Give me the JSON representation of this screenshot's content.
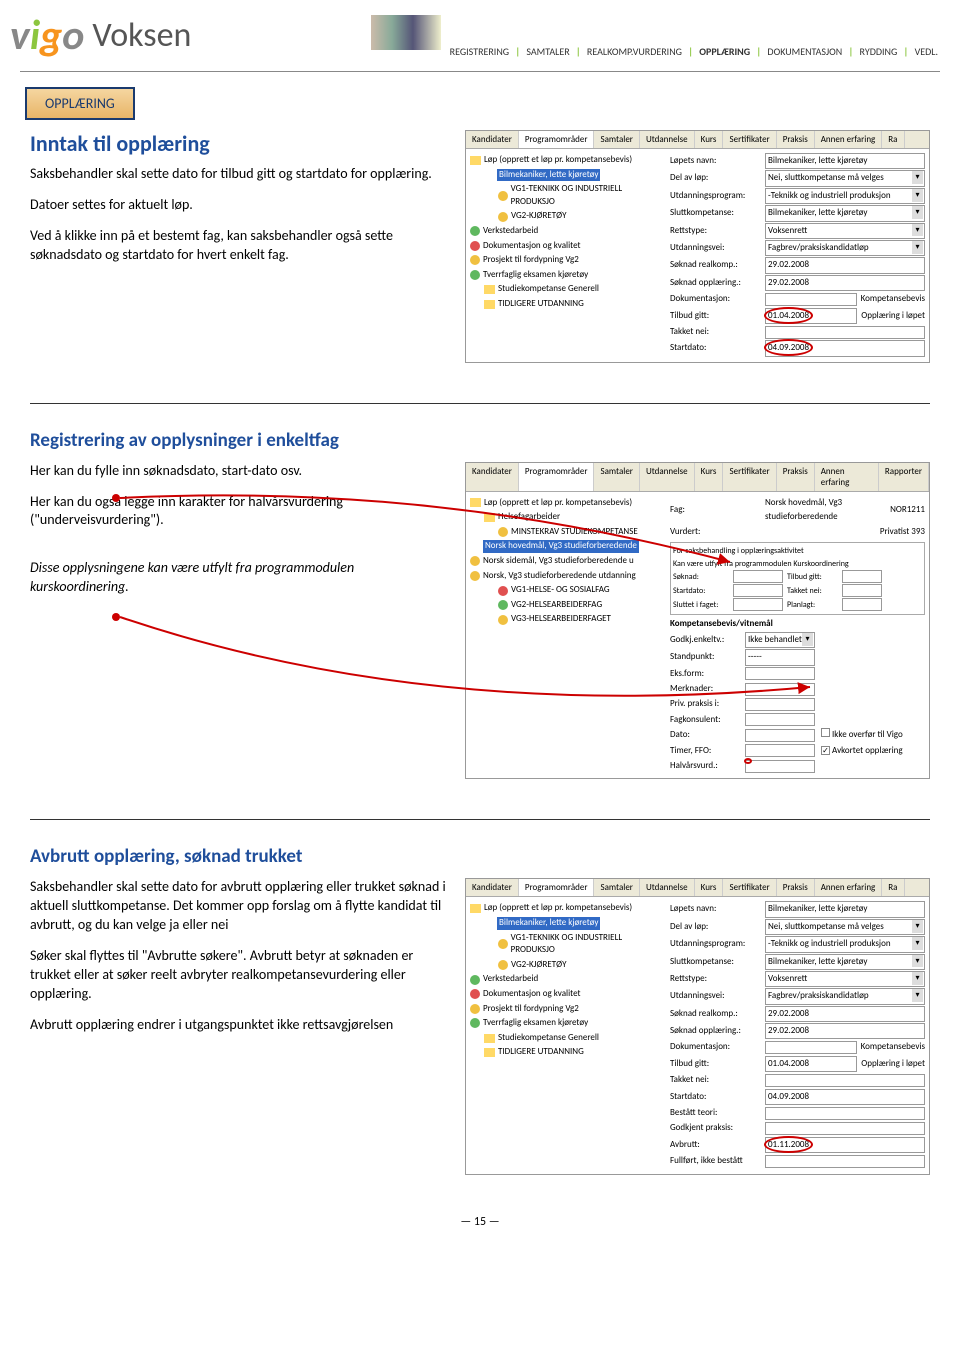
{
  "logo": {
    "v": "v",
    "i": "i",
    "g": "g",
    "o": "o",
    "voksen": "Voksen"
  },
  "breadcrumb": [
    "REGISTRERING",
    "SAMTALER",
    "REALKOMP.VURDERING",
    "OPPLÆRING",
    "DOKUMENTASJON",
    "RYDDING",
    "VEDL."
  ],
  "breadcrumb_active": "OPPLÆRING",
  "badge": "OPPLÆRING",
  "nav_sep": "|",
  "page_num": "— 15 —",
  "s1": {
    "title": "Inntak til opplæring",
    "p1": "Saksbehandler skal sette dato for tilbud gitt og startdato for opplæring.",
    "p2": "Datoer settes for aktuelt løp.",
    "p3": "Ved å klikke inn på et bestemt fag, kan saksbehandler også sette søknadsdato og startdato for hvert enkelt fag.",
    "tabs": [
      "Kandidater",
      "Programområder",
      "Samtaler",
      "Utdannelse",
      "Kurs",
      "Sertifikater",
      "Praksis",
      "Annen erfaring",
      "Ra"
    ],
    "active_tab": "Programområder",
    "tree_root": "Løp (opprett et løp pr. kompetansebevis)",
    "tree": [
      {
        "label": "Bilmekaniker, lette kjøretøy",
        "sel": true
      },
      {
        "label": "VG1-TEKNIKK OG INDUSTRIELL PRODUKSJO",
        "ico": "yellow",
        "ind": 1
      },
      {
        "label": "VG2-KJØRETØY",
        "ico": "yellow",
        "ind": 1
      },
      {
        "label": "Verkstedarbeid",
        "ico": "green",
        "ind": 2
      },
      {
        "label": "Dokumentasjon og kvalitet",
        "ico": "red",
        "ind": 2
      },
      {
        "label": "Prosjekt til fordypning Vg2",
        "ico": "yellow",
        "ind": 2
      },
      {
        "label": "Tverrfaglig eksamen kjøretøy",
        "ico": "green",
        "ind": 2
      },
      {
        "label": "Studiekompetanse Generell",
        "ico": "folder",
        "ind": 0
      },
      {
        "label": "TIDLIGERE UTDANNING",
        "ico": "folder",
        "ind": 0
      }
    ],
    "form": [
      {
        "l": "Løpets navn:",
        "v": "Bilmekaniker, lette kjøretøy"
      },
      {
        "l": "Del av løp:",
        "v": "Nei, sluttkompetanse må velges",
        "dd": true
      },
      {
        "l": "Utdanningsprogram:",
        "v": "-Teknikk og industriell produksjon",
        "dd": true
      },
      {
        "l": "Sluttkompetanse:",
        "v": "Bilmekaniker, lette kjøretøy",
        "dd": true
      },
      {
        "l": "Rettstype:",
        "v": "Voksenrett",
        "dd": true
      },
      {
        "l": "Utdanningsvei:",
        "v": "Fagbrev/praksiskandidatløp",
        "dd": true
      },
      {
        "l": "Søknad realkomp.:",
        "v": "29.02.2008"
      },
      {
        "l": "Søknad opplæring.:",
        "v": "29.02.2008"
      },
      {
        "l": "Dokumentasjon:",
        "v": "",
        "extra": "Kompetansebevis"
      },
      {
        "l": "Tilbud gitt:",
        "v": "01.04.2008",
        "extra": "Opplæring i løpet",
        "circle": true
      },
      {
        "l": "Takket nei:",
        "v": ""
      },
      {
        "l": "Startdato:",
        "v": "04.09.2008",
        "circle": true
      }
    ]
  },
  "s2": {
    "title": "Registrering av opplysninger i enkeltfag",
    "p1": "Her kan du fylle inn søknadsdato, start-dato osv.",
    "p2": "Her kan du også legge inn karakter for halvårsvurdering (\"underveisvurdering\").",
    "p3": "Disse opplysningene kan være utfylt fra programmodulen kurskoordinering.",
    "tabs": [
      "Kandidater",
      "Programområder",
      "Samtaler",
      "Utdannelse",
      "Kurs",
      "Sertifikater",
      "Praksis",
      "Annen erfaring",
      "Rapporter"
    ],
    "active_tab": "Programområder",
    "tree_root": "Løp (opprett et løp pr. kompetansebevis)",
    "tree": [
      {
        "label": "Helsefagarbeider",
        "ico": "folder",
        "ind": 0
      },
      {
        "label": "MINSTEKRAV STUDIEKOMPETANSE",
        "ico": "yellow",
        "ind": 1
      },
      {
        "label": "Norsk hovedmål, Vg3 studieforberedende",
        "sel": true,
        "ind": 2
      },
      {
        "label": "Norsk sidemål, Vg3 studieforberedende u",
        "ico": "yellow",
        "ind": 2
      },
      {
        "label": "Norsk, Vg3 studieforberedende utdanning",
        "ico": "yellow",
        "ind": 2
      },
      {
        "label": "VG1-HELSE- OG SOSIALFAG",
        "ico": "red",
        "ind": 1
      },
      {
        "label": "VG2-HELSEARBEIDERFAG",
        "ico": "green",
        "ind": 1
      },
      {
        "label": "VG3-HELSEARBEIDERFAGET",
        "ico": "yellow",
        "ind": 1
      }
    ],
    "form_top": [
      {
        "l": "Fag:",
        "v": "Norsk hovedmål, Vg3 studieforberedende",
        "extra": "NOR1211"
      },
      {
        "l": "Vurdert:",
        "v": "",
        "extra": "Privatist  393"
      }
    ],
    "form_box_title": "For saksbehandling i opplæringsaktivitet",
    "form_box_sub": "Kan være utfylt fra programmodulen Kurskoordinering",
    "form_mid": [
      {
        "l": "Søknad:",
        "v": "",
        "l2": "Tilbud gitt:",
        "v2": ""
      },
      {
        "l": "Startdato:",
        "v": "",
        "l2": "Takket nei:",
        "v2": ""
      },
      {
        "l": "Sluttet i faget:",
        "v": "",
        "l2": "Planlagt:",
        "v2": ""
      }
    ],
    "form_section": "Kompetansebevis/vitnemål",
    "form_bottom": [
      {
        "l": "Godkj.enkeltv.:",
        "v": "Ikke behandlet",
        "dd": true
      },
      {
        "l": "Standpunkt:",
        "v": "-----"
      },
      {
        "l": "Eks.form:",
        "v": ""
      },
      {
        "l": "Merknader:",
        "v": ""
      },
      {
        "l": "Priv. praksis i:",
        "v": ""
      },
      {
        "l": "Fagkonsulent:",
        "v": ""
      },
      {
        "l": "Dato:",
        "v": "",
        "cb": "Ikke overfør til Vigo"
      },
      {
        "l": "Timer, FFO:",
        "v": "",
        "cb": "Avkortet opplæring",
        "checked": true
      },
      {
        "l": "Halvårsvurd.:",
        "v": "",
        "circle": true
      }
    ]
  },
  "s3": {
    "title": "Avbrutt opplæring, søknad trukket",
    "p1": "Saksbehandler skal sette dato for avbrutt opplæring eller trukket søknad i aktuell sluttkompetanse. Det kommer opp forslag om å flytte kandidat til avbrutt, og du kan velge ja eller nei",
    "p2": "Søker skal flyttes til \"Avbrutte søkere\". Avbrutt betyr at søknaden er trukket eller at søker reelt avbryter realkompetansevurdering eller opplæring.",
    "p3": "Avbrutt opplæring endrer i utgangspunktet ikke rettsavgjørelsen",
    "tabs": [
      "Kandidater",
      "Programområder",
      "Samtaler",
      "Utdannelse",
      "Kurs",
      "Sertifikater",
      "Praksis",
      "Annen erfaring",
      "Ra"
    ],
    "active_tab": "Programområder",
    "tree_root": "Løp (opprett et løp pr. kompetansebevis)",
    "tree": [
      {
        "label": "Bilmekaniker, lette kjøretøy",
        "sel": true
      },
      {
        "label": "VG1-TEKNIKK OG INDUSTRIELL PRODUKSJO",
        "ico": "yellow",
        "ind": 1
      },
      {
        "label": "VG2-KJØRETØY",
        "ico": "yellow",
        "ind": 1
      },
      {
        "label": "Verkstedarbeid",
        "ico": "green",
        "ind": 2
      },
      {
        "label": "Dokumentasjon og kvalitet",
        "ico": "red",
        "ind": 2
      },
      {
        "label": "Prosjekt til fordypning Vg2",
        "ico": "yellow",
        "ind": 2
      },
      {
        "label": "Tverrfaglig eksamen kjøretøy",
        "ico": "green",
        "ind": 2
      },
      {
        "label": "Studiekompetanse Generell",
        "ico": "folder",
        "ind": 0
      },
      {
        "label": "TIDLIGERE UTDANNING",
        "ico": "folder",
        "ind": 0
      }
    ],
    "form": [
      {
        "l": "Løpets navn:",
        "v": "Bilmekaniker, lette kjøretøy"
      },
      {
        "l": "Del av løp:",
        "v": "Nei, sluttkompetanse må velges",
        "dd": true
      },
      {
        "l": "Utdanningsprogram:",
        "v": "-Teknikk og industriell produksjon",
        "dd": true
      },
      {
        "l": "Sluttkompetanse:",
        "v": "Bilmekaniker, lette kjøretøy",
        "dd": true
      },
      {
        "l": "Rettstype:",
        "v": "Voksenrett",
        "dd": true
      },
      {
        "l": "Utdanningsvei:",
        "v": "Fagbrev/praksiskandidatløp",
        "dd": true
      },
      {
        "l": "Søknad realkomp.:",
        "v": "29.02.2008"
      },
      {
        "l": "Søknad opplæring.:",
        "v": "29.02.2008"
      },
      {
        "l": "Dokumentasjon:",
        "v": "",
        "extra": "Kompetansebevis"
      },
      {
        "l": "Tilbud gitt:",
        "v": "01.04.2008",
        "extra": "Opplæring i løpet"
      },
      {
        "l": "Takket nei:",
        "v": ""
      },
      {
        "l": "Startdato:",
        "v": "04.09.2008"
      },
      {
        "l": "Bestått teori:",
        "v": ""
      },
      {
        "l": "Godkjent praksis:",
        "v": ""
      },
      {
        "l": "Avbrutt:",
        "v": "01.11.2008",
        "circle": true
      },
      {
        "l": "Fullført, ikke bestått",
        "v": ""
      }
    ]
  }
}
